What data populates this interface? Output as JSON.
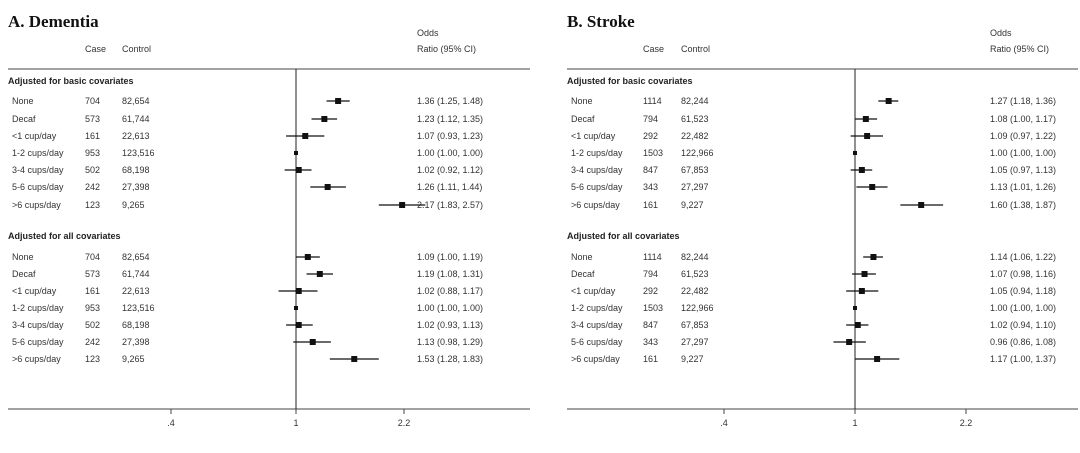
{
  "chart_data": [
    {
      "type": "forest",
      "title": "A. Dementia",
      "columns": {
        "case": "Case",
        "control": "Control",
        "or_line1": "Odds",
        "or_line2": "Ratio (95% CI)"
      },
      "x_ticks": [
        ".4",
        "1",
        "2.2"
      ],
      "reference_line": 1,
      "log_scale": true,
      "groups": [
        {
          "label": "Adjusted for basic covariates",
          "rows": [
            {
              "category": "None",
              "case": "704",
              "control": "82,654",
              "or": 1.36,
              "lo": 1.25,
              "hi": 1.48,
              "text": "1.36 (1.25, 1.48)"
            },
            {
              "category": "Decaf",
              "case": "573",
              "control": "61,744",
              "or": 1.23,
              "lo": 1.12,
              "hi": 1.35,
              "text": "1.23 (1.12, 1.35)"
            },
            {
              "category": "<1 cup/day",
              "case": "161",
              "control": "22,613",
              "or": 1.07,
              "lo": 0.93,
              "hi": 1.23,
              "text": "1.07 (0.93, 1.23)"
            },
            {
              "category": "1-2 cups/day",
              "case": "953",
              "control": "123,516",
              "or": 1.0,
              "lo": 1.0,
              "hi": 1.0,
              "text": "1.00 (1.00, 1.00)"
            },
            {
              "category": "3-4 cups/day",
              "case": "502",
              "control": "68,198",
              "or": 1.02,
              "lo": 0.92,
              "hi": 1.12,
              "text": "1.02 (0.92, 1.12)"
            },
            {
              "category": "5-6 cups/day",
              "case": "242",
              "control": "27,398",
              "or": 1.26,
              "lo": 1.11,
              "hi": 1.44,
              "text": "1.26 (1.11, 1.44)"
            },
            {
              "category": ">6 cups/day",
              "case": "123",
              "control": "9,265",
              "or": 2.17,
              "lo": 1.83,
              "hi": 2.57,
              "text": "2.17 (1.83, 2.57)"
            }
          ]
        },
        {
          "label": "Adjusted for all covariates",
          "rows": [
            {
              "category": "None",
              "case": "704",
              "control": "82,654",
              "or": 1.09,
              "lo": 1.0,
              "hi": 1.19,
              "text": "1.09 (1.00, 1.19)"
            },
            {
              "category": "Decaf",
              "case": "573",
              "control": "61,744",
              "or": 1.19,
              "lo": 1.08,
              "hi": 1.31,
              "text": "1.19 (1.08, 1.31)"
            },
            {
              "category": "<1 cup/day",
              "case": "161",
              "control": "22,613",
              "or": 1.02,
              "lo": 0.88,
              "hi": 1.17,
              "text": "1.02 (0.88, 1.17)"
            },
            {
              "category": "1-2 cups/day",
              "case": "953",
              "control": "123,516",
              "or": 1.0,
              "lo": 1.0,
              "hi": 1.0,
              "text": "1.00 (1.00, 1.00)"
            },
            {
              "category": "3-4 cups/day",
              "case": "502",
              "control": "68,198",
              "or": 1.02,
              "lo": 0.93,
              "hi": 1.13,
              "text": "1.02 (0.93, 1.13)"
            },
            {
              "category": "5-6 cups/day",
              "case": "242",
              "control": "27,398",
              "or": 1.13,
              "lo": 0.98,
              "hi": 1.29,
              "text": "1.13 (0.98, 1.29)"
            },
            {
              "category": ">6 cups/day",
              "case": "123",
              "control": "9,265",
              "or": 1.53,
              "lo": 1.28,
              "hi": 1.83,
              "text": "1.53 (1.28, 1.83)"
            }
          ]
        }
      ]
    },
    {
      "type": "forest",
      "title": "B. Stroke",
      "columns": {
        "case": "Case",
        "control": "Control",
        "or_line1": "Odds",
        "or_line2": "Ratio (95% CI)"
      },
      "x_ticks": [
        ".4",
        "1",
        "2.2"
      ],
      "reference_line": 1,
      "log_scale": true,
      "groups": [
        {
          "label": "Adjusted for basic covariates",
          "rows": [
            {
              "category": "None",
              "case": "1114",
              "control": "82,244",
              "or": 1.27,
              "lo": 1.18,
              "hi": 1.36,
              "text": "1.27 (1.18, 1.36)"
            },
            {
              "category": "Decaf",
              "case": "794",
              "control": "61,523",
              "or": 1.08,
              "lo": 1.0,
              "hi": 1.17,
              "text": "1.08 (1.00, 1.17)"
            },
            {
              "category": "<1 cup/day",
              "case": "292",
              "control": "22,482",
              "or": 1.09,
              "lo": 0.97,
              "hi": 1.22,
              "text": "1.09 (0.97, 1.22)"
            },
            {
              "category": "1-2 cups/day",
              "case": "1503",
              "control": "122,966",
              "or": 1.0,
              "lo": 1.0,
              "hi": 1.0,
              "text": "1.00 (1.00, 1.00)"
            },
            {
              "category": "3-4 cups/day",
              "case": "847",
              "control": "67,853",
              "or": 1.05,
              "lo": 0.97,
              "hi": 1.13,
              "text": "1.05 (0.97, 1.13)"
            },
            {
              "category": "5-6 cups/day",
              "case": "343",
              "control": "27,297",
              "or": 1.13,
              "lo": 1.01,
              "hi": 1.26,
              "text": "1.13 (1.01, 1.26)"
            },
            {
              "category": ">6 cups/day",
              "case": "161",
              "control": "9,227",
              "or": 1.6,
              "lo": 1.38,
              "hi": 1.87,
              "text": "1.60 (1.38, 1.87)"
            }
          ]
        },
        {
          "label": "Adjusted for all covariates",
          "rows": [
            {
              "category": "None",
              "case": "1114",
              "control": "82,244",
              "or": 1.14,
              "lo": 1.06,
              "hi": 1.22,
              "text": "1.14 (1.06, 1.22)"
            },
            {
              "category": "Decaf",
              "case": "794",
              "control": "61,523",
              "or": 1.07,
              "lo": 0.98,
              "hi": 1.16,
              "text": "1.07 (0.98, 1.16)"
            },
            {
              "category": "<1 cup/day",
              "case": "292",
              "control": "22,482",
              "or": 1.05,
              "lo": 0.94,
              "hi": 1.18,
              "text": "1.05 (0.94, 1.18)"
            },
            {
              "category": "1-2 cups/day",
              "case": "1503",
              "control": "122,966",
              "or": 1.0,
              "lo": 1.0,
              "hi": 1.0,
              "text": "1.00 (1.00, 1.00)"
            },
            {
              "category": "3-4 cups/day",
              "case": "847",
              "control": "67,853",
              "or": 1.02,
              "lo": 0.94,
              "hi": 1.1,
              "text": "1.02 (0.94, 1.10)"
            },
            {
              "category": "5-6 cups/day",
              "case": "343",
              "control": "27,297",
              "or": 0.96,
              "lo": 0.86,
              "hi": 1.08,
              "text": "0.96 (0.86, 1.08)"
            },
            {
              "category": ">6 cups/day",
              "case": "161",
              "control": "9,227",
              "or": 1.17,
              "lo": 1.0,
              "hi": 1.37,
              "text": "1.17 (1.00, 1.37)"
            }
          ]
        }
      ]
    }
  ]
}
